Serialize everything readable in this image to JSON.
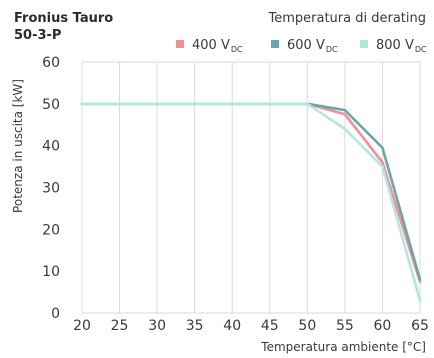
{
  "chart_data": {
    "type": "line",
    "title_line1": "Fronius Tauro",
    "title_line2": "50-3-P",
    "legend_title": "Temperatura di derating",
    "legend_position": "top-right",
    "xlabel": "Temperatura ambiente [°C]",
    "ylabel": "Potenza in uscita [kW]",
    "x_ticks": [
      20,
      25,
      30,
      35,
      40,
      45,
      50,
      55,
      60,
      65
    ],
    "y_ticks": [
      0,
      10,
      20,
      30,
      40,
      50,
      60
    ],
    "xlim": [
      20,
      65
    ],
    "ylim": [
      0,
      60
    ],
    "grid": "vertical",
    "series": [
      {
        "name_main": "400 V",
        "name_sub": "DC",
        "color": "#ef8f97",
        "x": [
          20,
          50,
          55,
          60,
          65
        ],
        "y": [
          50,
          50,
          47.5,
          36,
          7.5
        ]
      },
      {
        "name_main": "600 V",
        "name_sub": "DC",
        "color": "#6aa6aa",
        "x": [
          20,
          50,
          55,
          60,
          65
        ],
        "y": [
          50,
          50,
          48.5,
          39.5,
          8
        ]
      },
      {
        "name_main": "800 V",
        "name_sub": "DC",
        "color": "#b3e6dc",
        "x": [
          20,
          50,
          55,
          60,
          65
        ],
        "y": [
          50,
          50,
          44,
          35,
          3
        ]
      }
    ]
  }
}
